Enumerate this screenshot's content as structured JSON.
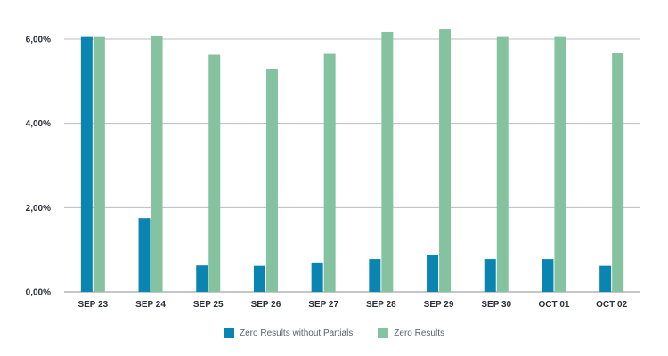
{
  "chart_data": {
    "type": "bar",
    "categories": [
      "SEP 23",
      "SEP 24",
      "SEP 25",
      "SEP 26",
      "SEP 27",
      "SEP 28",
      "SEP 29",
      "SEP 30",
      "OCT 01",
      "OCT 02"
    ],
    "series": [
      {
        "name": "Zero Results without Partials",
        "color": "#0a84b0",
        "values": [
          6.05,
          1.75,
          0.63,
          0.62,
          0.7,
          0.78,
          0.87,
          0.78,
          0.78,
          0.62
        ]
      },
      {
        "name": "Zero Results",
        "color": "#84c2a0",
        "values": [
          6.05,
          6.07,
          5.63,
          5.3,
          5.65,
          6.17,
          6.23,
          6.05,
          6.05,
          5.68
        ]
      }
    ],
    "yticks": [
      "0,00%",
      "2,00%",
      "4,00%",
      "6,00%"
    ],
    "ylim": [
      0,
      6.0
    ],
    "grid": true,
    "legend_position": "bottom-center",
    "title": "",
    "xlabel": "",
    "ylabel": ""
  }
}
